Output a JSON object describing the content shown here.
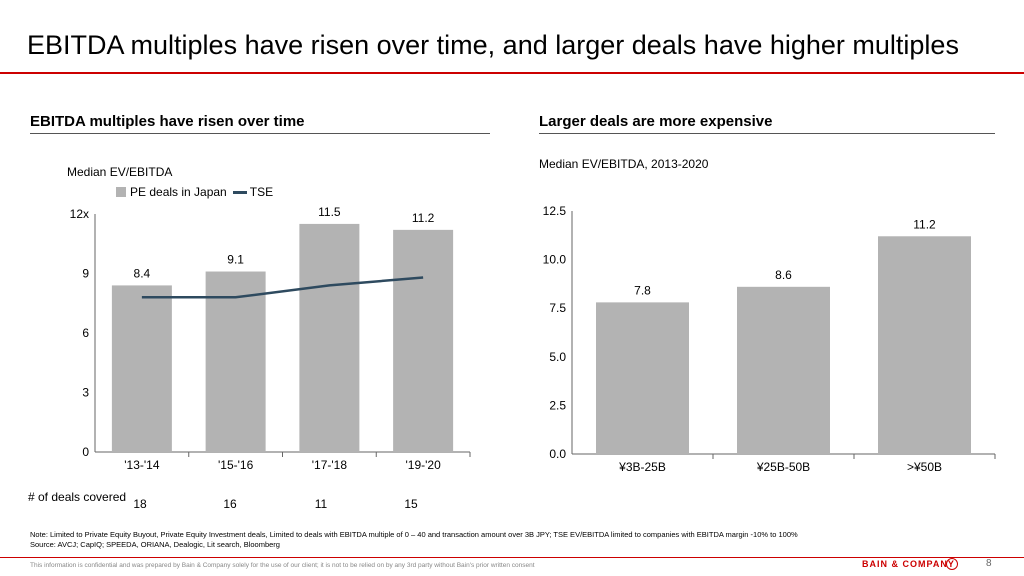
{
  "page": {
    "title": "EBITDA multiples have risen over time, and larger deals have higher multiples",
    "note": "Note: Limited to Private Equity Buyout, Private Equity Investment deals, Limited to deals with EBITDA  multiple  of 0 – 40 and transaction amount over 3B JPY;  TSE  EV/EBITDA  limited to companies with EBITDA  margin  -10% to 100%",
    "source": "Source: AVCJ; CapIQ;  SPEEDA,   ORIANA,  Dealogic, Lit search, Bloomberg",
    "footer": "This information is confidential and was prepared by Bain & Company solely for the use of our client; it is not to be relied on by any 3rd party without Bain's prior written consent",
    "brand": "BAIN & COMPANY",
    "page_number": "8"
  },
  "left": {
    "section_title": "EBITDA multiples  have risen over time",
    "deals_label": "# of deals covered",
    "deals": [
      "18",
      "16",
      "11",
      "15"
    ]
  },
  "right": {
    "section_title": "Larger deals are more expensive"
  },
  "colors": {
    "bar": "#b3b3b3",
    "line": "#2e4a5f",
    "accent": "#cc0000"
  },
  "chart_data": [
    {
      "type": "bar",
      "subtitle": "Median EV/EBITDA",
      "categories": [
        "'13-'14",
        "'15-'16",
        "'17-'18",
        "'19-'20"
      ],
      "series": [
        {
          "name": "PE deals in Japan",
          "type": "bar",
          "values": [
            8.4,
            9.1,
            11.5,
            11.2
          ],
          "labels": [
            "8.4",
            "9.1",
            "11.5",
            "11.2"
          ]
        },
        {
          "name": "TSE",
          "type": "line",
          "values": [
            7.8,
            7.8,
            8.4,
            8.8
          ]
        }
      ],
      "ylim": [
        0,
        12
      ],
      "yticks": [
        0,
        3,
        6,
        9,
        12
      ],
      "ytick_labels": [
        "0",
        "3",
        "6",
        "9",
        "12x"
      ],
      "legend": "top-left"
    },
    {
      "type": "bar",
      "subtitle": "Median EV/EBITDA, 2013-2020",
      "categories": [
        "¥3B-25B",
        "¥25B-50B",
        ">¥50B"
      ],
      "values": [
        7.8,
        8.6,
        11.2
      ],
      "labels": [
        "7.8",
        "8.6",
        "11.2"
      ],
      "ylim": [
        0,
        12.5
      ],
      "yticks": [
        0,
        2.5,
        5,
        7.5,
        10,
        12.5
      ],
      "ytick_labels": [
        "0.0",
        "2.5",
        "5.0",
        "7.5",
        "10.0",
        "12.5"
      ]
    }
  ]
}
